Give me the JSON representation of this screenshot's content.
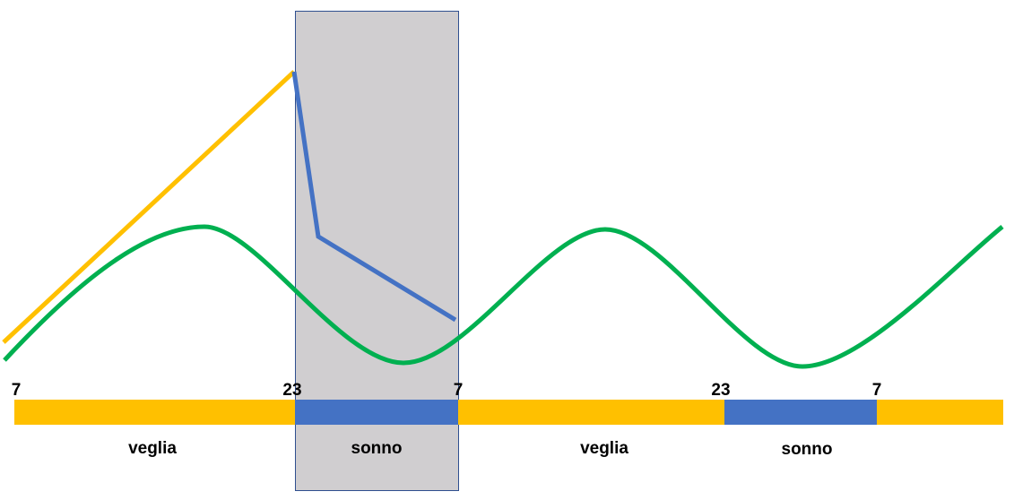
{
  "timeline": {
    "hours": [
      "7",
      "23",
      "7",
      "23",
      "7"
    ],
    "segments": [
      "veglia",
      "sonno",
      "veglia",
      "sonno"
    ]
  }
}
